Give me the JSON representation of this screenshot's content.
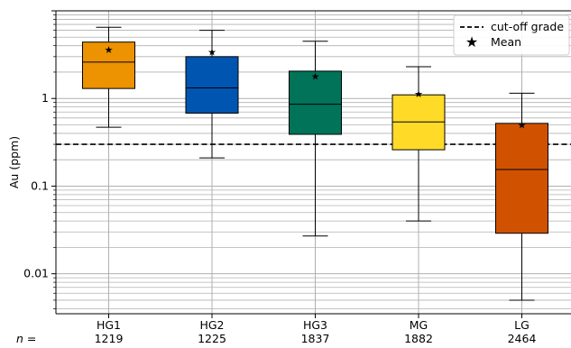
{
  "chart_data": {
    "type": "boxplot",
    "ylabel": "Au (ppm)",
    "yscale": "log",
    "ylim": [
      0.0035,
      10
    ],
    "y_ticks": [
      {
        "value": 0.01,
        "label": "0.01"
      },
      {
        "value": 0.1,
        "label": "0.1"
      },
      {
        "value": 1,
        "label": "1"
      }
    ],
    "grid": "on",
    "legend_position": "top-right",
    "n_prefix": "n =",
    "reference_line": {
      "value": 0.3,
      "label": "cut-off grade",
      "style": "dashed",
      "color": "#000000"
    },
    "mean_label": "Mean",
    "categories": [
      {
        "name": "HG1",
        "n": "1219",
        "color": "#ED9200",
        "whisker_low": 0.47,
        "q1": 1.3,
        "median": 2.6,
        "q3": 4.4,
        "whisker_high": 6.5,
        "mean": 3.6
      },
      {
        "name": "HG2",
        "n": "1225",
        "color": "#0055B0",
        "whisker_low": 0.21,
        "q1": 0.68,
        "median": 1.32,
        "q3": 3.0,
        "whisker_high": 6.0,
        "mean": 3.4
      },
      {
        "name": "HG3",
        "n": "1837",
        "color": "#007358",
        "whisker_low": 0.027,
        "q1": 0.39,
        "median": 0.86,
        "q3": 2.05,
        "whisker_high": 4.5,
        "mean": 1.8
      },
      {
        "name": "MG",
        "n": "1882",
        "color": "#FFDB28",
        "whisker_low": 0.04,
        "q1": 0.26,
        "median": 0.54,
        "q3": 1.1,
        "whisker_high": 2.3,
        "mean": 1.13
      },
      {
        "name": "LG",
        "n": "2464",
        "color": "#D05200",
        "whisker_low": 0.005,
        "q1": 0.029,
        "median": 0.155,
        "q3": 0.52,
        "whisker_high": 1.15,
        "mean": 0.5
      }
    ]
  }
}
